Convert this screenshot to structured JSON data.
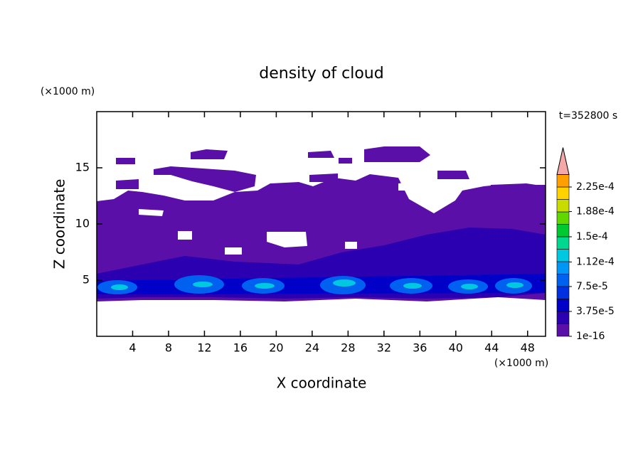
{
  "chart_data": {
    "type": "contour",
    "title": "density of cloud",
    "x_label": "X coordinate",
    "y_label": "Z coordinate",
    "x_unit": "(×1000 m)",
    "y_unit": "(×1000 m)",
    "annotation": "t=352800 s",
    "xlim": [
      0,
      50
    ],
    "ylim": [
      0,
      20
    ],
    "xticks": [
      4,
      8,
      12,
      16,
      20,
      24,
      28,
      32,
      36,
      40,
      44,
      48
    ],
    "yticks": [
      5,
      10,
      15
    ],
    "colorbar": {
      "levels": [
        1e-16,
        1.875e-05,
        3.75e-05,
        5.625e-05,
        7.5e-05,
        9.375e-05,
        0.0001125,
        0.00013125,
        0.00015,
        0.00016875,
        0.0001875,
        0.00020625,
        0.000225,
        0.00024375
      ],
      "colors": [
        "#5a0fa8",
        "#2a00b0",
        "#0000c8",
        "#0030e0",
        "#0060f0",
        "#0096f5",
        "#00c8e0",
        "#00d890",
        "#00c830",
        "#60d800",
        "#c8dc00",
        "#ffd200",
        "#ffa000",
        "#ff6000",
        "#ff2000"
      ],
      "extend_color": "#f4a8a8",
      "ticks": [
        {
          "value": 1e-16,
          "label": "1e-16"
        },
        {
          "value": 3.75e-05,
          "label": "3.75e-5"
        },
        {
          "value": 7.5e-05,
          "label": "7.5e-5"
        },
        {
          "value": 0.000112,
          "label": "1.12e-4"
        },
        {
          "value": 0.00015,
          "label": "1.5e-4"
        },
        {
          "value": 0.000188,
          "label": "1.88e-4"
        },
        {
          "value": 0.000225,
          "label": "2.25e-4"
        }
      ]
    }
  }
}
